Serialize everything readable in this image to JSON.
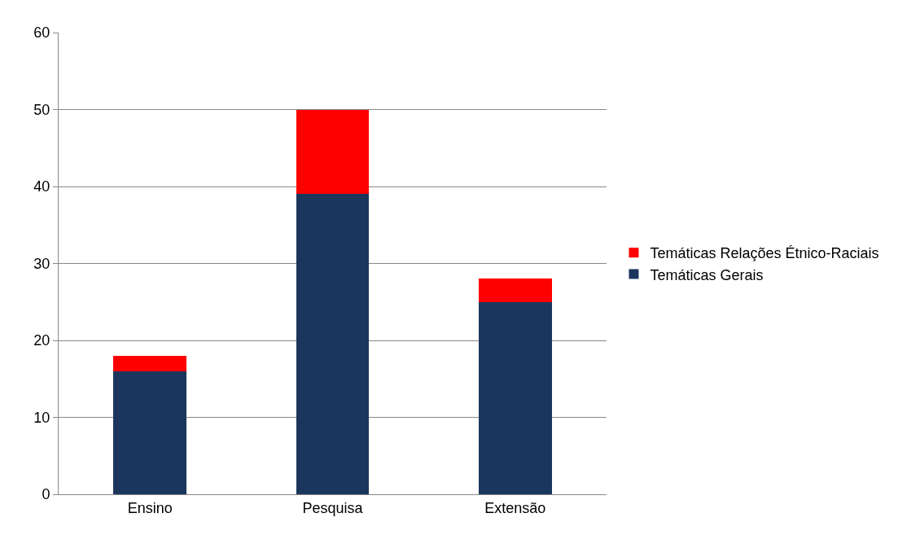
{
  "chart_data": {
    "type": "bar",
    "stacked": true,
    "categories": [
      "Ensino",
      "Pesquisa",
      "Extensão"
    ],
    "series": [
      {
        "name": "Temáticas Gerais",
        "color": "#1b365d",
        "values": [
          16,
          39,
          25
        ]
      },
      {
        "name": "Temáticas Relações Étnico-Raciais",
        "color": "#ff0000",
        "values": [
          2,
          11,
          3
        ]
      }
    ],
    "ylim": [
      0,
      60
    ],
    "yticks": [
      0,
      10,
      20,
      30,
      40,
      50,
      60
    ],
    "grid": "y",
    "legend": "right"
  }
}
